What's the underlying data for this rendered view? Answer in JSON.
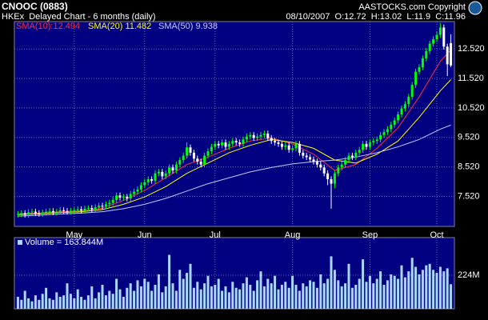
{
  "chart_data": [
    {
      "type": "candlestick",
      "title": "CNOOC (0883)",
      "subtitle": "HKEx  Delayed Chart - 6 months (daily)",
      "annotations": [
        "AASTOCKS.com Copyright",
        "08/10/2007  O:12.72  H:13.02  L:11.9  C:11.96"
      ],
      "open": [
        6.9,
        6.92,
        6.95,
        6.9,
        6.98,
        7.0,
        6.95,
        6.93,
        6.97,
        7.0,
        7.02,
        6.98,
        7.0,
        7.05,
        7.02,
        7.0,
        7.03,
        7.05,
        7.08,
        7.04,
        7.1,
        7.12,
        7.08,
        7.15,
        7.2,
        7.18,
        7.25,
        7.3,
        7.4,
        7.55,
        7.48,
        7.5,
        7.45,
        7.6,
        7.68,
        7.75,
        7.9,
        8.0,
        8.1,
        8.05,
        8.3,
        8.35,
        8.2,
        8.3,
        8.5,
        8.4,
        8.6,
        8.75,
        8.9,
        9.18,
        9.0,
        8.8,
        8.7,
        8.6,
        8.9,
        9.05,
        9.2,
        9.3,
        9.25,
        9.35,
        9.2,
        9.3,
        9.4,
        9.35,
        9.3,
        9.45,
        9.55,
        9.6,
        9.5,
        9.55,
        9.6,
        9.65,
        9.5,
        9.4,
        9.35,
        9.3,
        9.2,
        9.25,
        9.1,
        9.15,
        9.3,
        9.0,
        8.9,
        8.85,
        8.77,
        8.7,
        8.6,
        8.5,
        8.3,
        8.1,
        7.95,
        8.3,
        8.5,
        8.6,
        8.75,
        8.9,
        8.85,
        9.0,
        9.1,
        9.3,
        9.2,
        9.35,
        9.4,
        9.45,
        9.6,
        9.7,
        9.8,
        9.95,
        10.1,
        10.3,
        10.5,
        10.65,
        10.9,
        11.3,
        11.75,
        11.9,
        12.2,
        12.45,
        12.7,
        12.85,
        13.0,
        13.25,
        12.6,
        12.72
      ],
      "high": [
        7.02,
        7.05,
        7.05,
        7.08,
        7.1,
        7.1,
        7.05,
        7.07,
        7.1,
        7.12,
        7.12,
        7.1,
        7.15,
        7.15,
        7.12,
        7.13,
        7.15,
        7.18,
        7.18,
        7.2,
        7.22,
        7.22,
        7.25,
        7.3,
        7.3,
        7.35,
        7.4,
        7.5,
        7.65,
        7.65,
        7.6,
        7.6,
        7.7,
        7.78,
        7.85,
        8.0,
        8.1,
        8.2,
        8.2,
        8.4,
        8.45,
        8.45,
        8.4,
        8.6,
        8.6,
        8.7,
        8.85,
        9.0,
        9.35,
        9.28,
        9.1,
        8.9,
        8.8,
        9.0,
        9.15,
        9.3,
        9.4,
        9.4,
        9.45,
        9.45,
        9.4,
        9.5,
        9.5,
        9.45,
        9.55,
        9.65,
        9.7,
        9.7,
        9.65,
        9.7,
        9.75,
        9.75,
        9.6,
        9.5,
        9.45,
        9.4,
        9.35,
        9.35,
        9.25,
        9.4,
        9.4,
        9.1,
        9.0,
        8.95,
        8.87,
        8.8,
        8.7,
        8.6,
        8.4,
        8.2,
        8.4,
        8.6,
        8.7,
        8.85,
        9.0,
        9.0,
        9.1,
        9.2,
        9.4,
        9.4,
        9.45,
        9.5,
        9.55,
        9.7,
        9.8,
        9.9,
        10.05,
        10.2,
        10.4,
        10.6,
        10.75,
        11.0,
        11.4,
        11.85,
        12.0,
        12.3,
        12.55,
        12.8,
        12.95,
        13.1,
        13.4,
        13.35,
        12.7,
        13.02
      ],
      "low": [
        6.8,
        6.82,
        6.8,
        6.8,
        6.88,
        6.85,
        6.83,
        6.83,
        6.87,
        6.9,
        6.88,
        6.88,
        6.9,
        6.92,
        6.9,
        6.9,
        6.93,
        6.95,
        6.94,
        6.94,
        7.0,
        6.98,
        6.98,
        7.05,
        7.08,
        7.08,
        7.15,
        7.2,
        7.3,
        7.38,
        7.38,
        7.35,
        7.35,
        7.5,
        7.58,
        7.65,
        7.8,
        7.9,
        7.95,
        7.95,
        8.2,
        8.1,
        8.1,
        8.2,
        8.3,
        8.3,
        8.5,
        8.65,
        8.8,
        8.9,
        8.7,
        8.6,
        8.5,
        8.5,
        8.8,
        8.95,
        9.1,
        9.15,
        9.15,
        9.1,
        9.1,
        9.2,
        9.25,
        9.2,
        9.2,
        9.35,
        9.45,
        9.4,
        9.4,
        9.45,
        9.5,
        9.4,
        9.3,
        9.25,
        9.2,
        9.1,
        9.1,
        9.0,
        9.0,
        9.05,
        8.9,
        8.8,
        8.75,
        8.67,
        8.6,
        8.5,
        8.4,
        8.2,
        7.9,
        7.1,
        7.8,
        8.2,
        8.4,
        8.5,
        8.65,
        8.75,
        8.75,
        8.9,
        9.0,
        9.1,
        9.1,
        9.25,
        9.3,
        9.35,
        9.5,
        9.6,
        9.7,
        9.85,
        10.0,
        10.2,
        10.4,
        10.55,
        10.8,
        11.2,
        11.65,
        11.8,
        12.1,
        12.35,
        12.6,
        12.75,
        12.9,
        12.5,
        11.6,
        11.9
      ],
      "close": [
        6.92,
        6.95,
        6.9,
        6.98,
        7.0,
        6.95,
        6.93,
        6.97,
        7.0,
        7.02,
        6.98,
        7.0,
        7.05,
        7.02,
        7.0,
        7.03,
        7.05,
        7.08,
        7.04,
        7.1,
        7.12,
        7.08,
        7.15,
        7.2,
        7.18,
        7.25,
        7.3,
        7.4,
        7.55,
        7.48,
        7.5,
        7.45,
        7.6,
        7.68,
        7.75,
        7.9,
        8.0,
        8.1,
        8.05,
        8.3,
        8.35,
        8.2,
        8.3,
        8.5,
        8.4,
        8.6,
        8.75,
        8.9,
        9.18,
        9.0,
        8.8,
        8.7,
        8.6,
        8.9,
        9.05,
        9.2,
        9.3,
        9.25,
        9.35,
        9.2,
        9.3,
        9.4,
        9.35,
        9.3,
        9.45,
        9.55,
        9.6,
        9.5,
        9.55,
        9.6,
        9.65,
        9.5,
        9.4,
        9.35,
        9.3,
        9.2,
        9.25,
        9.1,
        9.15,
        9.3,
        9.0,
        8.9,
        8.85,
        8.77,
        8.7,
        8.6,
        8.5,
        8.3,
        8.1,
        7.95,
        8.3,
        8.5,
        8.6,
        8.75,
        8.9,
        8.85,
        9.0,
        9.1,
        9.3,
        9.2,
        9.35,
        9.4,
        9.45,
        9.6,
        9.7,
        9.8,
        9.95,
        10.1,
        10.3,
        10.5,
        10.65,
        10.9,
        11.3,
        11.75,
        11.9,
        12.2,
        12.45,
        12.7,
        12.85,
        13.0,
        13.25,
        12.6,
        12.0,
        11.96
      ],
      "up_color": "#00ff00",
      "down_color": "#ffffff",
      "lines": [
        {
          "name": "SMA(10):12.494",
          "color": "#ff3030",
          "x": [
            0,
            6,
            12,
            18,
            24,
            30,
            36,
            42,
            48,
            54,
            60,
            66,
            72,
            78,
            84,
            90,
            96,
            102,
            108,
            114,
            120,
            123
          ],
          "values": [
            6.92,
            6.95,
            7.0,
            7.03,
            7.12,
            7.38,
            7.72,
            8.15,
            8.6,
            8.85,
            9.15,
            9.4,
            9.5,
            9.3,
            8.95,
            8.4,
            8.6,
            9.15,
            9.85,
            10.9,
            12.1,
            12.494
          ]
        },
        {
          "name": "SMA(20) 11.482",
          "color": "#ffff00",
          "x": [
            0,
            6,
            12,
            18,
            24,
            30,
            36,
            42,
            48,
            54,
            60,
            66,
            72,
            78,
            84,
            90,
            96,
            102,
            108,
            114,
            120,
            123
          ],
          "values": [
            6.9,
            6.93,
            6.97,
            7.0,
            7.07,
            7.25,
            7.5,
            7.85,
            8.3,
            8.65,
            9.0,
            9.25,
            9.45,
            9.35,
            9.15,
            8.75,
            8.65,
            8.95,
            9.4,
            10.2,
            11.1,
            11.482
          ]
        },
        {
          "name": "SMA(50) 9.938",
          "color": "#c8c8ff",
          "x": [
            0,
            6,
            12,
            18,
            24,
            30,
            36,
            42,
            48,
            54,
            60,
            66,
            72,
            78,
            84,
            90,
            96,
            102,
            108,
            114,
            120,
            123
          ],
          "values": [
            6.85,
            6.88,
            6.92,
            6.95,
            7.0,
            7.1,
            7.25,
            7.45,
            7.7,
            7.95,
            8.15,
            8.35,
            8.5,
            8.62,
            8.7,
            8.75,
            8.85,
            9.0,
            9.2,
            9.45,
            9.8,
            9.938
          ]
        }
      ],
      "xlim": [
        -1,
        124
      ],
      "xticks": [
        {
          "value": 16,
          "label": "May"
        },
        {
          "value": 36,
          "label": "Jun"
        },
        {
          "value": 56,
          "label": "Jul"
        },
        {
          "value": 78,
          "label": "Aug"
        },
        {
          "value": 100,
          "label": "Sep"
        },
        {
          "value": 119,
          "label": "Oct"
        }
      ],
      "ylim": [
        6.5,
        13.45
      ],
      "yticks": [
        {
          "value": 7.52,
          "label": "7.520"
        },
        {
          "value": 8.52,
          "label": "8.520"
        },
        {
          "value": 9.52,
          "label": "9.520"
        },
        {
          "value": 10.52,
          "label": "10.520"
        },
        {
          "value": 11.52,
          "label": "11.520"
        },
        {
          "value": 12.52,
          "label": "12.520"
        }
      ],
      "grid": true
    },
    {
      "type": "bar",
      "name": "Volume = 163.844M",
      "color": "#a8d8ff",
      "values": [
        80,
        60,
        120,
        70,
        50,
        90,
        60,
        100,
        140,
        70,
        60,
        110,
        80,
        90,
        170,
        100,
        70,
        130,
        80,
        60,
        90,
        150,
        70,
        110,
        160,
        90,
        120,
        100,
        200,
        130,
        80,
        140,
        170,
        120,
        190,
        150,
        200,
        180,
        120,
        160,
        230,
        110,
        150,
        360,
        170,
        120,
        260,
        200,
        240,
        300,
        140,
        180,
        130,
        170,
        220,
        150,
        160,
        200,
        120,
        150,
        110,
        180,
        140,
        130,
        170,
        210,
        160,
        120,
        190,
        250,
        150,
        200,
        170,
        220,
        130,
        160,
        180,
        140,
        220,
        160,
        120,
        170,
        150,
        190,
        180,
        140,
        230,
        170,
        200,
        350,
        260,
        190,
        150,
        170,
        300,
        140,
        160,
        200,
        330,
        180,
        220,
        170,
        200,
        250,
        160,
        190,
        230,
        220,
        200,
        290,
        210,
        250,
        340,
        280,
        230,
        260,
        290,
        300,
        260,
        240,
        280,
        250,
        270,
        163.844
      ],
      "xlim": [
        -1,
        124
      ],
      "ylim": [
        0,
        475
      ],
      "yticks": [
        {
          "value": 224,
          "label": "224M"
        }
      ],
      "grid": true
    }
  ]
}
